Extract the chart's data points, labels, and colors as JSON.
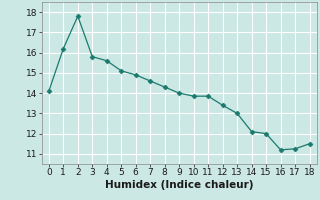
{
  "x": [
    0,
    1,
    2,
    3,
    4,
    5,
    6,
    7,
    8,
    9,
    10,
    11,
    12,
    13,
    14,
    15,
    16,
    17,
    18
  ],
  "y": [
    14.1,
    16.2,
    17.8,
    15.8,
    15.6,
    15.1,
    14.9,
    14.6,
    14.3,
    14.0,
    13.85,
    13.85,
    13.4,
    13.0,
    12.1,
    12.0,
    11.2,
    11.25,
    11.5
  ],
  "xlabel": "Humidex (Indice chaleur)",
  "line_color": "#1a7a6e",
  "marker": "D",
  "marker_size": 2.5,
  "xlim": [
    -0.5,
    18.5
  ],
  "ylim": [
    10.5,
    18.5
  ],
  "yticks": [
    11,
    12,
    13,
    14,
    15,
    16,
    17,
    18
  ],
  "xticks": [
    0,
    1,
    2,
    3,
    4,
    5,
    6,
    7,
    8,
    9,
    10,
    11,
    12,
    13,
    14,
    15,
    16,
    17,
    18
  ],
  "bg_color": "#cce8e4",
  "grid_color": "#ffffff",
  "tick_fontsize": 6.5,
  "xlabel_fontsize": 7.5
}
